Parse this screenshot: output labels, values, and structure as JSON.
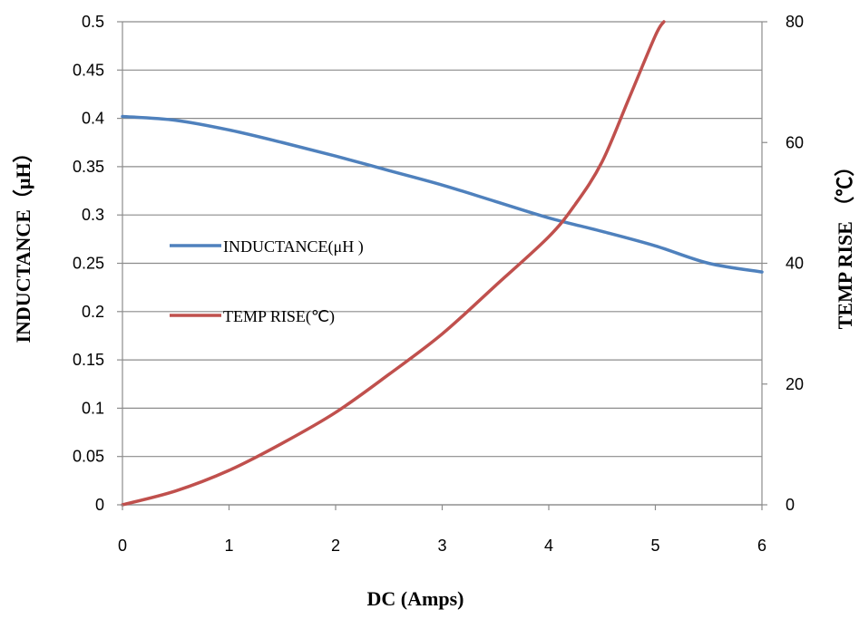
{
  "chart_data": {
    "type": "line",
    "xlabel": "DC (Amps)",
    "ylabel_left": "INDUCTANCE（μH）",
    "ylabel_right": "TEMP RISE （℃）",
    "xlim": [
      0,
      6
    ],
    "ylim_left": [
      0,
      0.5
    ],
    "ylim_right": [
      0,
      80
    ],
    "x_ticks": [
      "0",
      "1",
      "2",
      "3",
      "4",
      "5",
      "6"
    ],
    "y_left_ticks": [
      "0",
      "0.05",
      "0.1",
      "0.15",
      "0.2",
      "0.25",
      "0.3",
      "0.35",
      "0.4",
      "0.45",
      "0.5"
    ],
    "y_right_ticks": [
      "0",
      "20",
      "40",
      "60",
      "80"
    ],
    "grid": true,
    "legend_position": "center-left",
    "series": [
      {
        "name": "INDUCTANCE(μH )",
        "axis": "left",
        "color": "#4f81bd",
        "x": [
          0,
          0.5,
          1,
          1.5,
          2,
          2.5,
          3,
          3.5,
          4,
          4.5,
          5,
          5.5,
          6
        ],
        "y": [
          0.402,
          0.398,
          0.388,
          0.375,
          0.361,
          0.346,
          0.331,
          0.314,
          0.297,
          0.283,
          0.268,
          0.25,
          0.241
        ]
      },
      {
        "name": "TEMP RISE(℃)",
        "axis": "right",
        "color": "#c0504d",
        "x": [
          0,
          0.5,
          1,
          1.5,
          2,
          2.5,
          3,
          3.5,
          4,
          4.25,
          4.5,
          4.75,
          5,
          5.08
        ],
        "y": [
          0,
          2.3,
          5.7,
          10.2,
          15.3,
          21.6,
          28.3,
          36.3,
          44.4,
          49.8,
          56.8,
          67.2,
          77.7,
          80
        ]
      }
    ]
  }
}
